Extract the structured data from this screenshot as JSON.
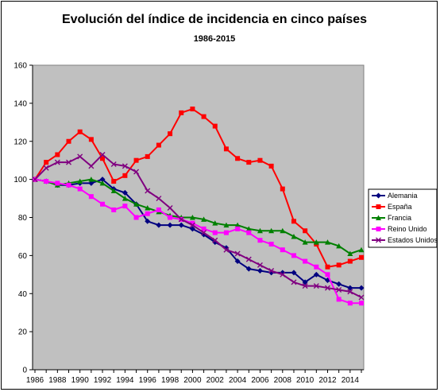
{
  "chart_data": {
    "type": "line",
    "title": "Evolución del índice de incidencia en cinco países",
    "subtitle": "1986-2015",
    "xlabel": "",
    "ylabel": "",
    "ylim": [
      0,
      160
    ],
    "yticks": [
      0,
      20,
      40,
      60,
      80,
      100,
      120,
      140,
      160
    ],
    "xlim": [
      1986,
      2015
    ],
    "xticks": [
      1986,
      1988,
      1990,
      1992,
      1994,
      1996,
      1998,
      2000,
      2002,
      2004,
      2006,
      2008,
      2010,
      2012,
      2014
    ],
    "grid": false,
    "plot_background": "#c0c0c0",
    "legend_position": "right",
    "x": [
      1986,
      1987,
      1988,
      1989,
      1990,
      1991,
      1992,
      1993,
      1994,
      1995,
      1996,
      1997,
      1998,
      1999,
      2000,
      2001,
      2002,
      2003,
      2004,
      2005,
      2006,
      2007,
      2008,
      2009,
      2010,
      2011,
      2012,
      2013,
      2014,
      2015
    ],
    "series": [
      {
        "name": "Alemania",
        "color": "#000080",
        "marker": "diamond",
        "values": [
          100,
          99,
          97,
          97,
          98,
          98,
          100,
          95,
          93,
          87,
          78,
          76,
          76,
          76,
          74,
          71,
          67,
          64,
          57,
          53,
          52,
          51,
          51,
          51,
          46,
          50,
          47,
          45,
          43,
          43
        ]
      },
      {
        "name": "España",
        "color": "#ff0000",
        "marker": "square",
        "values": [
          100,
          109,
          113,
          120,
          125,
          121,
          111,
          99,
          102,
          110,
          112,
          118,
          124,
          135,
          137,
          133,
          128,
          116,
          111,
          109,
          110,
          107,
          95,
          78,
          73,
          66,
          54,
          55,
          57,
          59
        ]
      },
      {
        "name": "Francia",
        "color": "#008000",
        "marker": "triangle",
        "values": [
          100,
          99,
          97,
          98,
          99,
          100,
          98,
          94,
          90,
          87,
          85,
          83,
          81,
          80,
          80,
          79,
          77,
          76,
          76,
          74,
          73,
          73,
          73,
          70,
          67,
          67,
          67,
          65,
          61,
          63
        ]
      },
      {
        "name": "Reino Unido",
        "color": "#ff00ff",
        "marker": "square",
        "values": [
          100,
          99,
          98,
          97,
          95,
          91,
          87,
          84,
          86,
          80,
          82,
          84,
          80,
          79,
          77,
          74,
          72,
          72,
          74,
          72,
          68,
          66,
          63,
          60,
          57,
          54,
          50,
          37,
          35,
          35
        ]
      },
      {
        "name": "Estados Unidos",
        "color": "#800080",
        "marker": "x",
        "values": [
          100,
          106,
          109,
          109,
          112,
          107,
          113,
          108,
          107,
          104,
          94,
          90,
          85,
          79,
          76,
          72,
          68,
          63,
          61,
          58,
          55,
          52,
          50,
          46,
          44,
          44,
          43,
          42,
          41,
          38
        ]
      }
    ]
  }
}
